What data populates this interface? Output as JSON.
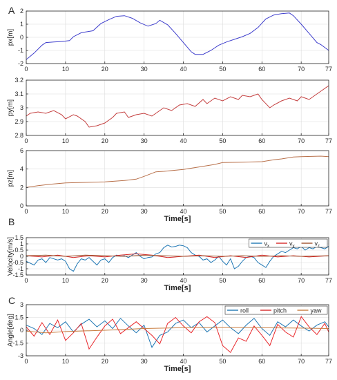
{
  "figure": {
    "panel_letters": [
      "A",
      "B",
      "C"
    ]
  },
  "chart_data": [
    {
      "type": "line",
      "ylabel": "px[m]",
      "xlabel": "",
      "xlim": [
        0,
        77
      ],
      "ylim": [
        -2,
        2
      ],
      "xticks": [
        0,
        10,
        20,
        30,
        40,
        50,
        60,
        70,
        77
      ],
      "yticks": [
        -2,
        -1,
        0,
        1,
        2
      ],
      "grid": true,
      "series": [
        {
          "color": "#3d3dcc",
          "x": [
            0,
            2,
            4,
            5,
            7,
            9,
            11,
            12,
            14,
            15,
            17,
            19,
            21,
            23,
            25,
            27,
            29,
            31,
            33,
            34,
            36,
            38,
            40,
            42,
            43,
            45,
            47,
            49,
            51,
            53,
            55,
            57,
            59,
            61,
            63,
            65,
            67,
            68,
            70,
            72,
            74,
            75,
            77
          ],
          "y": [
            -1.7,
            -1.2,
            -0.6,
            -0.4,
            -0.35,
            -0.32,
            -0.25,
            0.05,
            0.35,
            0.4,
            0.5,
            1.05,
            1.35,
            1.6,
            1.65,
            1.45,
            1.1,
            0.85,
            1.05,
            1.3,
            0.95,
            0.3,
            -0.4,
            -1.1,
            -1.3,
            -1.3,
            -1.0,
            -0.6,
            -0.35,
            -0.15,
            0.05,
            0.3,
            0.75,
            1.4,
            1.7,
            1.8,
            1.85,
            1.65,
            1.0,
            0.3,
            -0.4,
            -0.55,
            -1.0
          ]
        }
      ]
    },
    {
      "type": "line",
      "ylabel": "py[m]",
      "xlabel": "",
      "xlim": [
        0,
        77
      ],
      "ylim": [
        2.8,
        3.2
      ],
      "xticks": [
        0,
        10,
        20,
        30,
        40,
        50,
        60,
        70,
        77
      ],
      "yticks": [
        2.8,
        2.9,
        3.0,
        3.1,
        3.2
      ],
      "grid": true,
      "series": [
        {
          "color": "#c43f3f",
          "x": [
            0,
            1,
            3,
            5,
            7,
            9,
            10,
            12,
            13,
            15,
            16,
            18,
            20,
            22,
            23,
            25,
            26,
            28,
            30,
            32,
            33,
            35,
            37,
            39,
            41,
            43,
            45,
            46,
            48,
            50,
            52,
            54,
            55,
            57,
            59,
            60,
            62,
            63,
            65,
            67,
            69,
            70,
            72,
            74,
            75,
            77
          ],
          "y": [
            2.94,
            2.96,
            2.97,
            2.96,
            2.98,
            2.95,
            2.92,
            2.95,
            2.94,
            2.9,
            2.86,
            2.87,
            2.89,
            2.93,
            2.96,
            2.97,
            2.93,
            2.95,
            2.96,
            2.94,
            2.96,
            3.0,
            2.98,
            3.02,
            3.03,
            3.01,
            3.06,
            3.03,
            3.07,
            3.05,
            3.08,
            3.06,
            3.09,
            3.08,
            3.1,
            3.06,
            3.0,
            3.02,
            3.05,
            3.07,
            3.05,
            3.08,
            3.06,
            3.1,
            3.12,
            3.16
          ]
        }
      ]
    },
    {
      "type": "line",
      "ylabel": "pz[m]",
      "xlabel": "Time[s]",
      "xlim": [
        0,
        77
      ],
      "ylim": [
        0,
        6
      ],
      "xticks": [
        0,
        10,
        20,
        30,
        40,
        50,
        60,
        70,
        77
      ],
      "yticks": [
        0,
        2,
        4,
        6
      ],
      "grid": true,
      "series": [
        {
          "color": "#b8704a",
          "x": [
            0,
            3,
            6,
            10,
            15,
            20,
            25,
            28,
            30,
            33,
            35,
            40,
            45,
            48,
            50,
            55,
            60,
            63,
            65,
            68,
            70,
            75,
            77
          ],
          "y": [
            2.0,
            2.2,
            2.35,
            2.5,
            2.55,
            2.6,
            2.75,
            2.9,
            3.2,
            3.7,
            3.75,
            3.95,
            4.3,
            4.5,
            4.7,
            4.75,
            4.8,
            5.0,
            5.1,
            5.3,
            5.35,
            5.4,
            5.35
          ]
        }
      ]
    },
    {
      "type": "line",
      "ylabel": "Velocity[m/s]",
      "xlabel": "Time[s]",
      "xlim": [
        0,
        77
      ],
      "ylim": [
        -1.5,
        1.5
      ],
      "xticks": [
        0,
        10,
        20,
        30,
        40,
        50,
        60,
        70,
        77
      ],
      "yticks": [
        -1.5,
        -1,
        -0.5,
        0,
        0.5,
        1,
        1.5
      ],
      "grid": true,
      "legend_position": "top-right",
      "legend": [
        {
          "base": "v",
          "sub": "x",
          "color": "#1f77b4"
        },
        {
          "base": "v",
          "sub": "y",
          "color": "#d62728"
        },
        {
          "base": "v",
          "sub": "z",
          "color": "#a0522d"
        }
      ],
      "series": [
        {
          "color": "#1f77b4",
          "x": [
            0,
            2,
            3,
            4,
            5,
            6,
            8,
            9,
            10,
            11,
            12,
            13,
            14,
            15,
            16,
            17,
            18,
            19,
            20,
            21,
            22,
            23,
            24,
            25,
            26,
            27,
            28,
            29,
            30,
            31,
            32,
            33,
            34,
            35,
            36,
            37,
            38,
            39,
            40,
            41,
            42,
            43,
            44,
            45,
            46,
            47,
            48,
            49,
            50,
            51,
            52,
            53,
            54,
            55,
            56,
            57,
            58,
            59,
            60,
            61,
            62,
            63,
            64,
            65,
            66,
            67,
            68,
            69,
            70,
            71,
            72,
            73,
            74,
            75,
            76,
            77
          ],
          "y": [
            -0.4,
            -0.7,
            -0.3,
            -0.2,
            -0.5,
            -0.1,
            -0.3,
            -0.2,
            -0.4,
            -1.0,
            -1.2,
            -0.6,
            -0.2,
            -0.3,
            -0.1,
            -0.4,
            -0.7,
            -0.3,
            -0.2,
            -0.5,
            -0.1,
            0.1,
            0.0,
            0.05,
            -0.1,
            0.1,
            0.3,
            0.0,
            -0.2,
            -0.1,
            -0.05,
            0.2,
            0.3,
            0.7,
            0.9,
            0.75,
            0.8,
            0.9,
            0.85,
            0.7,
            0.3,
            0.1,
            0.0,
            -0.3,
            -0.2,
            -0.5,
            -0.3,
            0.0,
            -0.4,
            -0.7,
            -0.2,
            -1.0,
            -0.8,
            -0.4,
            -0.1,
            0.0,
            -0.1,
            -0.5,
            -0.7,
            -0.9,
            -0.4,
            0.0,
            0.2,
            0.4,
            0.3,
            0.5,
            0.7,
            0.6,
            0.8,
            0.5,
            0.7,
            0.6,
            0.8,
            0.7,
            0.6,
            0.8
          ]
        },
        {
          "color": "#d62728",
          "x": [
            0,
            4,
            8,
            12,
            16,
            20,
            24,
            28,
            32,
            36,
            40,
            44,
            48,
            52,
            56,
            60,
            64,
            68,
            72,
            77
          ],
          "y": [
            0.05,
            -0.05,
            0.1,
            -0.1,
            0.05,
            -0.05,
            0.1,
            0.2,
            0.1,
            -0.1,
            0.0,
            0.1,
            -0.1,
            0.05,
            -0.1,
            0.1,
            -0.05,
            0.05,
            -0.05,
            0.05
          ]
        },
        {
          "color": "#a0522d",
          "x": [
            0,
            5,
            10,
            15,
            20,
            25,
            30,
            35,
            40,
            45,
            50,
            55,
            60,
            65,
            70,
            77
          ],
          "y": [
            0.05,
            0.1,
            0.0,
            0.1,
            0.05,
            0.0,
            0.1,
            0.05,
            0.0,
            0.05,
            0.0,
            0.05,
            0.0,
            0.05,
            0.0,
            0.05
          ]
        }
      ]
    },
    {
      "type": "line",
      "ylabel": "Angle[deg]",
      "xlabel": "Time[s]",
      "xlim": [
        0,
        77
      ],
      "ylim": [
        -3,
        3
      ],
      "xticks": [
        0,
        10,
        20,
        30,
        40,
        50,
        60,
        70,
        77
      ],
      "yticks": [
        -3,
        -1.5,
        0,
        1.5,
        3
      ],
      "grid": true,
      "legend_position": "top-right",
      "legend": [
        {
          "base": "roll",
          "sub": "",
          "color": "#1f77b4"
        },
        {
          "base": "pitch",
          "sub": "",
          "color": "#d62728"
        },
        {
          "base": "yaw",
          "sub": "",
          "color": "#c87a3c"
        }
      ],
      "series": [
        {
          "color": "#1f77b4",
          "x": [
            0,
            2,
            4,
            6,
            8,
            10,
            12,
            14,
            16,
            18,
            20,
            22,
            24,
            26,
            28,
            30,
            32,
            34,
            36,
            38,
            40,
            42,
            44,
            46,
            48,
            50,
            52,
            54,
            56,
            58,
            60,
            62,
            64,
            66,
            68,
            70,
            72,
            74,
            76,
            77
          ],
          "y": [
            0.6,
            0.2,
            -0.5,
            0.8,
            0.3,
            1.0,
            -0.2,
            0.7,
            1.3,
            0.4,
            1.1,
            0.2,
            1.4,
            0.5,
            -0.3,
            0.6,
            -2.0,
            -0.6,
            -0.2,
            0.8,
            1.2,
            0.3,
            0.9,
            -0.2,
            0.5,
            1.2,
            0.3,
            -0.4,
            0.6,
            1.4,
            0.2,
            -0.6,
            1.0,
            0.4,
            1.2,
            0.5,
            -0.1,
            0.6,
            1.0,
            0.4
          ]
        },
        {
          "color": "#e8262a",
          "x": [
            0,
            2,
            4,
            6,
            8,
            10,
            12,
            14,
            16,
            18,
            20,
            22,
            24,
            26,
            28,
            30,
            32,
            34,
            36,
            38,
            40,
            42,
            44,
            46,
            48,
            50,
            52,
            54,
            56,
            58,
            60,
            62,
            64,
            66,
            68,
            70,
            72,
            74,
            76,
            77
          ],
          "y": [
            0.4,
            -0.7,
            0.9,
            -0.5,
            1.2,
            -1.2,
            -0.3,
            0.8,
            -2.2,
            -0.8,
            0.5,
            1.3,
            -0.4,
            0.3,
            1.0,
            0.2,
            -0.6,
            -1.6,
            0.8,
            1.5,
            0.5,
            -0.3,
            1.0,
            1.6,
            0.9,
            -1.8,
            -2.6,
            -0.9,
            -1.3,
            0.5,
            -0.6,
            -1.8,
            0.7,
            -0.2,
            -0.8,
            1.6,
            0.4,
            -0.5,
            0.8,
            -0.2
          ]
        },
        {
          "color": "#c87a3c",
          "x": [
            0,
            5,
            10,
            20,
            30,
            40,
            50,
            60,
            70,
            77
          ],
          "y": [
            -0.1,
            -0.3,
            -0.15,
            0.0,
            0.2,
            0.3,
            0.35,
            0.3,
            0.25,
            0.2
          ]
        }
      ]
    }
  ]
}
